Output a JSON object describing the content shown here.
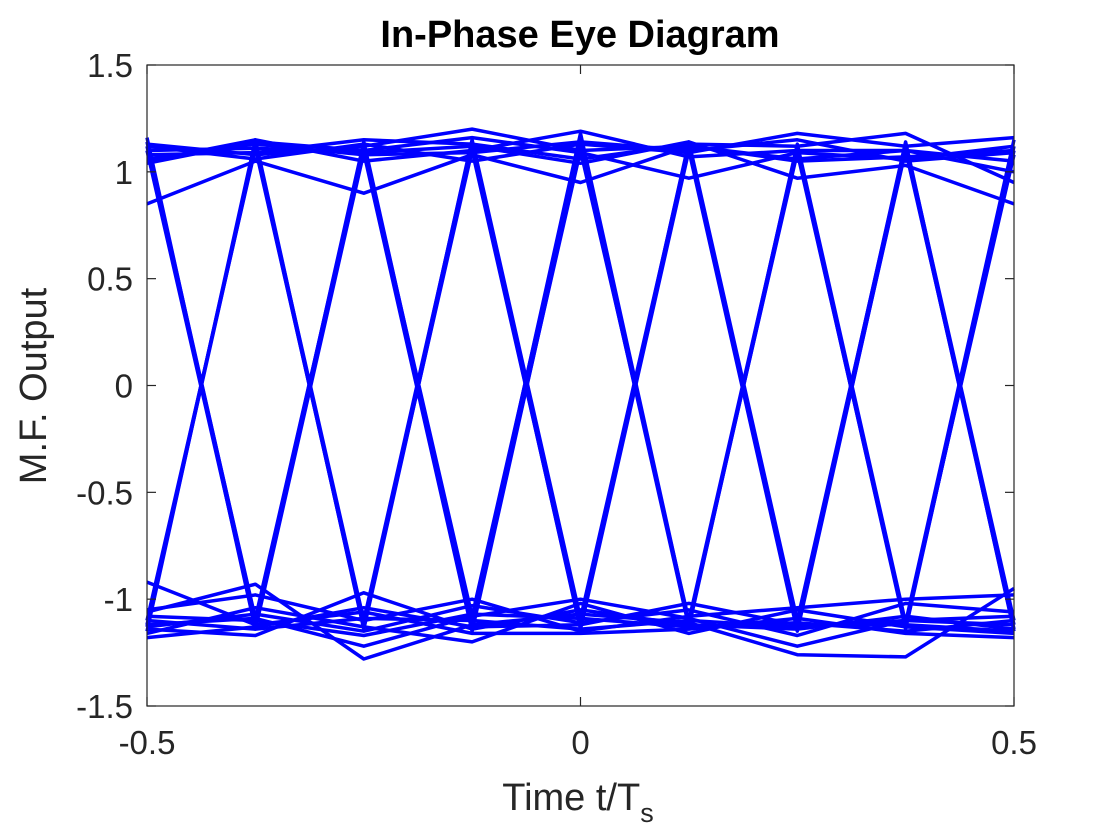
{
  "chart_data": {
    "type": "line",
    "title": "In-Phase Eye Diagram",
    "xlabel": "Time t/T",
    "xlabel_subscript": "s",
    "ylabel": "M.F. Output",
    "xlim": [
      -0.5,
      0.5
    ],
    "ylim": [
      -1.5,
      1.5
    ],
    "xticks": [
      -0.5,
      0,
      0.5
    ],
    "xtick_labels": [
      "-0.5",
      "0",
      "0.5"
    ],
    "yticks": [
      -1.5,
      -1,
      -0.5,
      0,
      0.5,
      1,
      1.5
    ],
    "ytick_labels": [
      "-1.5",
      "-1",
      "-0.5",
      "0",
      "0.5",
      "1",
      "1.5"
    ],
    "grid": false,
    "line_color": "#0000ff",
    "x": [
      -0.5,
      -0.375,
      -0.25,
      -0.125,
      0,
      0.125,
      0.25,
      0.375,
      0.5
    ],
    "series": [
      {
        "values": [
          1.14,
          -1.1,
          1.12,
          -1.08,
          1.15,
          -1.12,
          1.1,
          -1.14,
          1.12
        ]
      },
      {
        "values": [
          -1.12,
          1.13,
          -1.1,
          1.14,
          -1.11,
          1.12,
          -1.13,
          1.1,
          -1.12
        ]
      },
      {
        "values": [
          1.1,
          -1.12,
          1.14,
          -1.12,
          1.1,
          -1.1,
          1.12,
          -1.12,
          1.08
        ]
      },
      {
        "values": [
          -1.1,
          1.11,
          -1.12,
          1.1,
          -1.13,
          1.14,
          -1.1,
          1.13,
          -1.1
        ]
      },
      {
        "values": [
          1.16,
          -1.14,
          1.09,
          -1.15,
          1.12,
          -1.13,
          1.13,
          -1.11,
          1.15
        ]
      },
      {
        "values": [
          -1.15,
          1.15,
          -1.14,
          1.12,
          -1.14,
          1.1,
          -1.15,
          1.11,
          -1.14
        ]
      },
      {
        "values": [
          1.12,
          -1.09,
          1.12,
          -1.11,
          1.18,
          -1.11,
          1.09,
          -1.13,
          1.1
        ]
      },
      {
        "values": [
          -1.13,
          1.12,
          -1.13,
          1.15,
          -1.09,
          1.13,
          -1.12,
          1.14,
          -1.15
        ]
      },
      {
        "values": [
          1.13,
          1.08,
          1.12,
          1.2,
          1.1,
          1.12,
          1.05,
          1.07,
          1.1
        ]
      },
      {
        "values": [
          1.06,
          1.13,
          1.08,
          1.09,
          1.14,
          1.1,
          1.15,
          1.05,
          1.09
        ]
      },
      {
        "values": [
          1.08,
          1.09,
          1.15,
          1.13,
          1.06,
          1.13,
          1.12,
          1.18,
          0.95
        ]
      },
      {
        "values": [
          1.05,
          1.15,
          1.05,
          1.1,
          1.19,
          1.07,
          1.1,
          1.1,
          1.05
        ]
      },
      {
        "values": [
          1.1,
          1.11,
          1.09,
          1.12,
          1.04,
          1.14,
          0.97,
          1.03,
          0.85
        ]
      },
      {
        "values": [
          1.12,
          1.06,
          1.13,
          1.05,
          1.13,
          1.09,
          1.18,
          1.12,
          1.16
        ]
      },
      {
        "values": [
          1.04,
          1.14,
          1.1,
          1.16,
          1.09,
          0.97,
          1.09,
          1.06,
          1.12
        ]
      },
      {
        "values": [
          0.85,
          1.05,
          0.9,
          1.08,
          0.95,
          1.12,
          1.06,
          1.1,
          1.0
        ]
      },
      {
        "values": [
          -1.05,
          -0.98,
          -1.1,
          -1.0,
          -1.15,
          -1.08,
          -1.04,
          -1.0,
          -0.98
        ]
      },
      {
        "values": [
          -1.14,
          -1.17,
          -0.97,
          -1.14,
          -1.05,
          -1.12,
          -1.14,
          -1.08,
          -1.14
        ]
      },
      {
        "values": [
          -1.08,
          -1.1,
          -1.17,
          -1.07,
          -1.09,
          -1.13,
          -1.11,
          -1.15,
          -1.1
        ]
      },
      {
        "values": [
          -1.16,
          -1.04,
          -1.13,
          -1.2,
          -1.02,
          -1.16,
          -1.05,
          -1.13,
          -1.16
        ]
      },
      {
        "values": [
          -1.1,
          -1.14,
          -1.09,
          -1.1,
          -1.14,
          -1.1,
          -1.13,
          -1.1,
          -1.12
        ]
      },
      {
        "values": [
          -1.06,
          -0.93,
          -1.28,
          -1.12,
          -1.07,
          -1.11,
          -1.26,
          -1.27,
          -0.95
        ]
      },
      {
        "values": [
          -1.13,
          -1.07,
          -1.15,
          -1.03,
          -1.11,
          -1.05,
          -1.17,
          -1.02,
          -1.06
        ]
      },
      {
        "values": [
          -0.92,
          -1.12,
          -1.06,
          -1.16,
          -1.16,
          -1.14,
          -1.09,
          -1.16,
          -1.18
        ]
      },
      {
        "values": [
          -1.12,
          -1.09,
          -1.22,
          -1.08,
          -1.0,
          -1.09,
          -1.22,
          -1.1,
          -1.08
        ]
      },
      {
        "values": [
          -1.18,
          -1.13,
          -1.04,
          -1.13,
          -1.12,
          -1.02,
          -1.12,
          -1.12,
          -1.15
        ]
      }
    ]
  }
}
